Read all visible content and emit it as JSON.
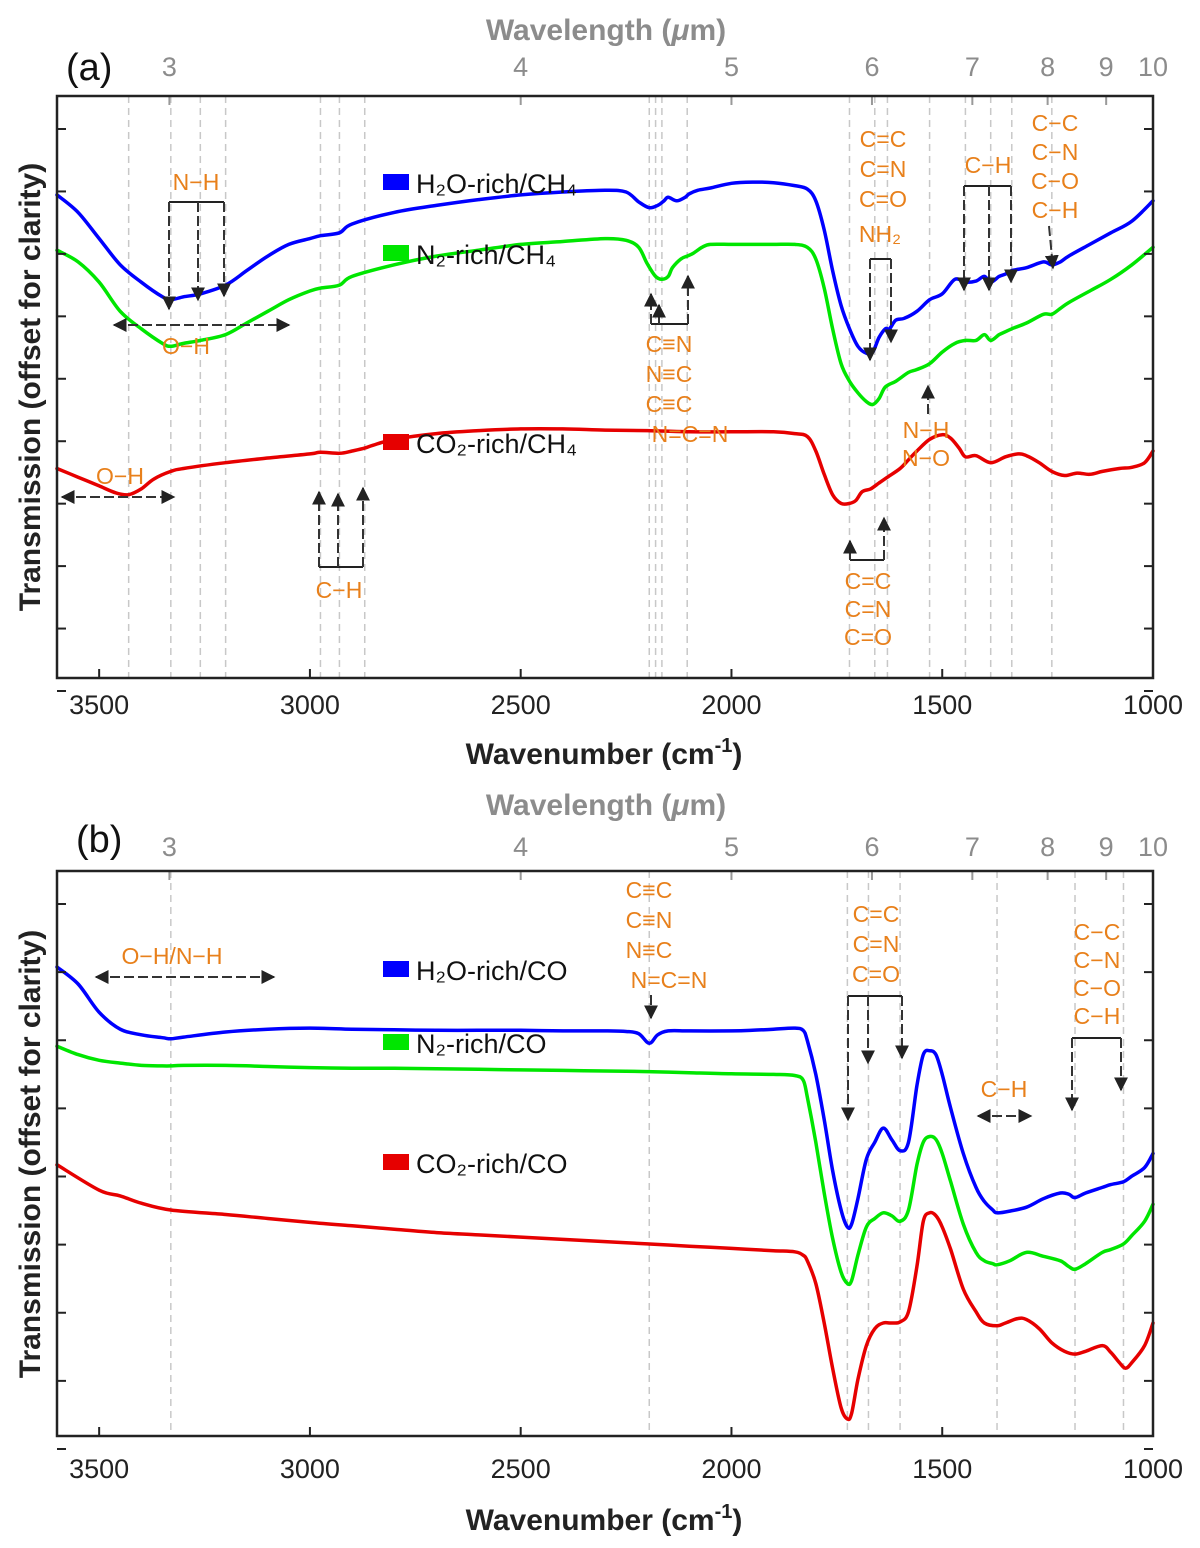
{
  "chart_data": [
    {
      "panel": "(a)",
      "type": "line",
      "xlabel": "Wavenumber (cm-1)",
      "xlabel_main": "Wavenumber (cm",
      "xlabel_sup": "-1",
      "xlabel_tail": ")",
      "ylabel": "Transmission (offset for clarity)",
      "top_axis_label": "Wavelength (μm)",
      "top_axis_label_main": "Wavelength (",
      "top_axis_label_mu": "μ",
      "top_axis_label_tail": "m)",
      "x_reversed": true,
      "xlim": [
        3600,
        1000
      ],
      "ylim": [
        0,
        1
      ],
      "grid": "dashed vertical lines at band positions",
      "x_ticks": [
        "3500",
        "3000",
        "2500",
        "2000",
        "1500",
        "1000"
      ],
      "top_ticks": [
        "3",
        "4",
        "5",
        "6",
        "7",
        "8",
        "9",
        "10"
      ],
      "ref_lines": [
        3430,
        3330,
        3260,
        3200,
        2975,
        2930,
        2870,
        2195,
        2180,
        2165,
        2105,
        1720,
        1660,
        1630,
        1530,
        1445,
        1385,
        1335,
        1240
      ],
      "series": [
        {
          "name": "H₂O-rich/CH₄",
          "color": "#0000ff",
          "x": [
            3600,
            3550,
            3500,
            3450,
            3400,
            3350,
            3330,
            3300,
            3260,
            3200,
            3150,
            3100,
            3050,
            3000,
            2975,
            2930,
            2900,
            2800,
            2700,
            2600,
            2500,
            2400,
            2300,
            2250,
            2220,
            2195,
            2175,
            2160,
            2150,
            2130,
            2110,
            2100,
            2080,
            2050,
            2000,
            1950,
            1900,
            1850,
            1820,
            1800,
            1780,
            1760,
            1740,
            1720,
            1700,
            1680,
            1665,
            1650,
            1635,
            1625,
            1610,
            1590,
            1560,
            1530,
            1500,
            1470,
            1445,
            1420,
            1400,
            1385,
            1365,
            1350,
            1335,
            1300,
            1260,
            1240,
            1220,
            1200,
            1150,
            1100,
            1050,
            1000
          ],
          "y": [
            0.83,
            0.8,
            0.755,
            0.71,
            0.68,
            0.655,
            0.65,
            0.655,
            0.66,
            0.675,
            0.7,
            0.725,
            0.745,
            0.755,
            0.76,
            0.765,
            0.78,
            0.8,
            0.812,
            0.822,
            0.83,
            0.835,
            0.838,
            0.835,
            0.818,
            0.808,
            0.812,
            0.82,
            0.826,
            0.82,
            0.826,
            0.832,
            0.838,
            0.842,
            0.85,
            0.852,
            0.851,
            0.846,
            0.84,
            0.82,
            0.77,
            0.7,
            0.64,
            0.6,
            0.57,
            0.558,
            0.56,
            0.585,
            0.6,
            0.6,
            0.615,
            0.618,
            0.63,
            0.65,
            0.66,
            0.685,
            0.68,
            0.682,
            0.69,
            0.68,
            0.69,
            0.694,
            0.7,
            0.705,
            0.715,
            0.71,
            0.715,
            0.725,
            0.745,
            0.765,
            0.785,
            0.82
          ]
        },
        {
          "name": "N₂-rich/CH₄",
          "color": "#00e600",
          "x": [
            3600,
            3550,
            3500,
            3450,
            3400,
            3350,
            3330,
            3300,
            3260,
            3200,
            3150,
            3100,
            3050,
            3000,
            2975,
            2930,
            2900,
            2800,
            2700,
            2600,
            2500,
            2400,
            2300,
            2250,
            2220,
            2200,
            2180,
            2165,
            2150,
            2140,
            2120,
            2105,
            2090,
            2070,
            2050,
            2000,
            1950,
            1900,
            1850,
            1820,
            1800,
            1780,
            1760,
            1740,
            1720,
            1700,
            1680,
            1665,
            1650,
            1635,
            1610,
            1580,
            1560,
            1530,
            1500,
            1470,
            1445,
            1420,
            1400,
            1385,
            1365,
            1350,
            1335,
            1300,
            1260,
            1240,
            1220,
            1200,
            1150,
            1100,
            1050,
            1000
          ],
          "y": [
            0.735,
            0.715,
            0.68,
            0.63,
            0.6,
            0.575,
            0.57,
            0.575,
            0.58,
            0.59,
            0.61,
            0.63,
            0.65,
            0.665,
            0.67,
            0.675,
            0.69,
            0.71,
            0.725,
            0.735,
            0.745,
            0.75,
            0.755,
            0.752,
            0.74,
            0.712,
            0.69,
            0.685,
            0.69,
            0.705,
            0.72,
            0.725,
            0.73,
            0.74,
            0.745,
            0.745,
            0.745,
            0.745,
            0.745,
            0.74,
            0.72,
            0.67,
            0.6,
            0.54,
            0.51,
            0.49,
            0.475,
            0.47,
            0.48,
            0.5,
            0.51,
            0.525,
            0.53,
            0.54,
            0.56,
            0.575,
            0.58,
            0.58,
            0.59,
            0.58,
            0.59,
            0.595,
            0.6,
            0.61,
            0.625,
            0.625,
            0.635,
            0.645,
            0.665,
            0.685,
            0.71,
            0.74
          ]
        },
        {
          "name": "CO₂-rich/CH₄",
          "color": "#e60000",
          "x": [
            3600,
            3550,
            3500,
            3460,
            3430,
            3400,
            3370,
            3330,
            3300,
            3200,
            3100,
            3000,
            2975,
            2930,
            2900,
            2870,
            2850,
            2800,
            2700,
            2600,
            2500,
            2400,
            2300,
            2200,
            2100,
            2000,
            1900,
            1850,
            1820,
            1800,
            1780,
            1760,
            1740,
            1720,
            1705,
            1690,
            1670,
            1650,
            1630,
            1600,
            1580,
            1560,
            1530,
            1500,
            1480,
            1460,
            1445,
            1420,
            1385,
            1350,
            1320,
            1300,
            1270,
            1240,
            1210,
            1180,
            1150,
            1120,
            1080,
            1050,
            1020,
            1000
          ],
          "y": [
            0.36,
            0.345,
            0.33,
            0.318,
            0.315,
            0.325,
            0.342,
            0.355,
            0.36,
            0.37,
            0.378,
            0.385,
            0.388,
            0.386,
            0.39,
            0.395,
            0.4,
            0.41,
            0.42,
            0.425,
            0.428,
            0.428,
            0.426,
            0.425,
            0.423,
            0.423,
            0.423,
            0.42,
            0.415,
            0.39,
            0.35,
            0.315,
            0.3,
            0.3,
            0.305,
            0.32,
            0.325,
            0.335,
            0.345,
            0.36,
            0.375,
            0.39,
            0.41,
            0.418,
            0.412,
            0.395,
            0.38,
            0.382,
            0.37,
            0.38,
            0.385,
            0.382,
            0.37,
            0.355,
            0.348,
            0.352,
            0.35,
            0.355,
            0.36,
            0.362,
            0.37,
            0.39
          ]
        }
      ],
      "legend": [
        {
          "label": "H₂O-rich/CH₄",
          "color": "#0000ff"
        },
        {
          "label": "N₂-rich/CH₄",
          "color": "#00e600"
        },
        {
          "label": "CO₂-rich/CH₄",
          "color": "#e60000"
        }
      ],
      "annotations": [
        {
          "lines": [
            "N−H"
          ]
        },
        {
          "lines": [
            "O−H"
          ]
        },
        {
          "lines": [
            "O−H"
          ]
        },
        {
          "lines": [
            "C−H"
          ]
        },
        {
          "lines": [
            "C≡N",
            "N≡C",
            "C≡C",
            "N=C=N"
          ]
        },
        {
          "lines": [
            "C=C",
            "C=N",
            "C=O",
            "NH₂"
          ]
        },
        {
          "lines": [
            "C−H"
          ]
        },
        {
          "lines": [
            "C−C",
            "C−N",
            "C−O",
            "C−H"
          ]
        },
        {
          "lines": [
            "N−H",
            "N−O"
          ]
        },
        {
          "lines": [
            "C=C",
            "C=N",
            "C=O"
          ]
        }
      ]
    },
    {
      "panel": "(b)",
      "type": "line",
      "xlabel": "Wavenumber (cm-1)",
      "xlabel_main": "Wavenumber (cm",
      "xlabel_sup": "-1",
      "xlabel_tail": ")",
      "ylabel": "Transmission (offset for clarity)",
      "top_axis_label": "Wavelength (μm)",
      "top_axis_label_main": "Wavelength (",
      "top_axis_label_mu": "μ",
      "top_axis_label_tail": "m)",
      "x_reversed": true,
      "xlim": [
        3600,
        1000
      ],
      "ylim": [
        0,
        1
      ],
      "grid": "dashed vertical lines at band positions",
      "x_ticks": [
        "3500",
        "3000",
        "2500",
        "2000",
        "1500",
        "1000"
      ],
      "top_ticks": [
        "3",
        "4",
        "5",
        "6",
        "7",
        "8",
        "9",
        "10"
      ],
      "ref_lines": [
        3330,
        2195,
        1725,
        1675,
        1600,
        1370,
        1185,
        1070
      ],
      "series": [
        {
          "name": "H₂O-rich/CO",
          "color": "#0000ff",
          "x": [
            3600,
            3550,
            3500,
            3450,
            3400,
            3350,
            3330,
            3300,
            3200,
            3100,
            3000,
            2900,
            2800,
            2700,
            2600,
            2500,
            2400,
            2300,
            2250,
            2220,
            2195,
            2175,
            2150,
            2100,
            2000,
            1950,
            1900,
            1850,
            1830,
            1820,
            1800,
            1780,
            1760,
            1740,
            1725,
            1715,
            1700,
            1680,
            1660,
            1640,
            1620,
            1600,
            1580,
            1560,
            1545,
            1530,
            1515,
            1500,
            1480,
            1450,
            1420,
            1400,
            1380,
            1370,
            1340,
            1300,
            1260,
            1220,
            1200,
            1185,
            1160,
            1120,
            1100,
            1070,
            1050,
            1020,
            1000
          ],
          "y": [
            0.83,
            0.8,
            0.75,
            0.72,
            0.71,
            0.705,
            0.703,
            0.706,
            0.715,
            0.72,
            0.722,
            0.72,
            0.719,
            0.718,
            0.718,
            0.718,
            0.717,
            0.717,
            0.716,
            0.712,
            0.695,
            0.71,
            0.717,
            0.717,
            0.717,
            0.718,
            0.72,
            0.722,
            0.718,
            0.7,
            0.64,
            0.56,
            0.47,
            0.4,
            0.37,
            0.375,
            0.42,
            0.49,
            0.52,
            0.545,
            0.525,
            0.505,
            0.52,
            0.62,
            0.675,
            0.682,
            0.675,
            0.64,
            0.58,
            0.5,
            0.44,
            0.415,
            0.4,
            0.395,
            0.398,
            0.405,
            0.42,
            0.43,
            0.428,
            0.422,
            0.43,
            0.44,
            0.445,
            0.45,
            0.46,
            0.475,
            0.5
          ]
        },
        {
          "name": "N₂-rich/CO",
          "color": "#00e600",
          "x": [
            3600,
            3550,
            3500,
            3450,
            3400,
            3350,
            3330,
            3300,
            3200,
            3100,
            3000,
            2900,
            2800,
            2700,
            2600,
            2500,
            2400,
            2300,
            2200,
            2100,
            2000,
            1900,
            1850,
            1830,
            1820,
            1800,
            1780,
            1760,
            1740,
            1725,
            1715,
            1700,
            1680,
            1660,
            1640,
            1620,
            1600,
            1580,
            1560,
            1545,
            1530,
            1515,
            1500,
            1480,
            1450,
            1420,
            1400,
            1380,
            1370,
            1340,
            1300,
            1260,
            1220,
            1200,
            1185,
            1160,
            1120,
            1100,
            1070,
            1050,
            1020,
            1000
          ],
          "y": [
            0.69,
            0.675,
            0.665,
            0.66,
            0.656,
            0.655,
            0.655,
            0.656,
            0.656,
            0.654,
            0.652,
            0.651,
            0.651,
            0.65,
            0.649,
            0.648,
            0.647,
            0.646,
            0.645,
            0.643,
            0.641,
            0.64,
            0.638,
            0.63,
            0.6,
            0.52,
            0.43,
            0.35,
            0.29,
            0.27,
            0.275,
            0.32,
            0.37,
            0.385,
            0.395,
            0.39,
            0.38,
            0.4,
            0.48,
            0.52,
            0.53,
            0.525,
            0.5,
            0.45,
            0.375,
            0.325,
            0.31,
            0.305,
            0.303,
            0.31,
            0.325,
            0.318,
            0.31,
            0.3,
            0.295,
            0.305,
            0.325,
            0.33,
            0.34,
            0.355,
            0.38,
            0.41
          ]
        },
        {
          "name": "CO₂-rich/CO",
          "color": "#e60000",
          "x": [
            3600,
            3500,
            3450,
            3400,
            3330,
            3200,
            3100,
            3000,
            2900,
            2800,
            2700,
            2600,
            2500,
            2400,
            2300,
            2200,
            2100,
            2000,
            1900,
            1850,
            1830,
            1820,
            1800,
            1780,
            1760,
            1740,
            1725,
            1715,
            1700,
            1680,
            1660,
            1640,
            1620,
            1600,
            1580,
            1560,
            1545,
            1530,
            1515,
            1500,
            1480,
            1450,
            1420,
            1400,
            1370,
            1350,
            1320,
            1300,
            1270,
            1240,
            1210,
            1185,
            1160,
            1120,
            1100,
            1080,
            1065,
            1050,
            1020,
            1000
          ],
          "y": [
            0.48,
            0.435,
            0.425,
            0.412,
            0.4,
            0.392,
            0.385,
            0.378,
            0.372,
            0.366,
            0.36,
            0.356,
            0.352,
            0.348,
            0.344,
            0.34,
            0.336,
            0.332,
            0.328,
            0.326,
            0.32,
            0.31,
            0.27,
            0.2,
            0.12,
            0.05,
            0.03,
            0.04,
            0.1,
            0.16,
            0.19,
            0.2,
            0.2,
            0.202,
            0.22,
            0.3,
            0.38,
            0.395,
            0.39,
            0.37,
            0.33,
            0.26,
            0.22,
            0.2,
            0.195,
            0.2,
            0.208,
            0.206,
            0.19,
            0.165,
            0.15,
            0.145,
            0.15,
            0.16,
            0.148,
            0.13,
            0.12,
            0.13,
            0.16,
            0.2
          ]
        }
      ],
      "legend": [
        {
          "label": "H₂O-rich/CO",
          "color": "#0000ff"
        },
        {
          "label": "N₂-rich/CO",
          "color": "#00e600"
        },
        {
          "label": "CO₂-rich/CO",
          "color": "#e60000"
        }
      ],
      "annotations": [
        {
          "lines": [
            "O−H/N−H"
          ]
        },
        {
          "lines": [
            "C≡C",
            "C≡N",
            "N≡C",
            "N=C=N"
          ]
        },
        {
          "lines": [
            "C=C",
            "C=N",
            "C=O"
          ]
        },
        {
          "lines": [
            "C−H"
          ]
        },
        {
          "lines": [
            "C−C",
            "C−N",
            "C−O",
            "C−H"
          ]
        }
      ]
    }
  ]
}
